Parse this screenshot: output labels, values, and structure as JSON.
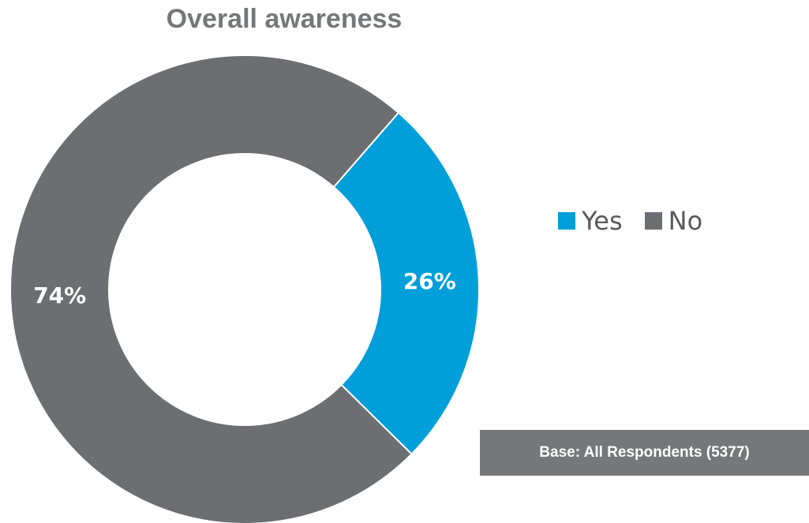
{
  "chart_data": {
    "type": "pie",
    "donut": true,
    "title": "Overall awareness",
    "categories": [
      "Yes",
      "No"
    ],
    "values": [
      26,
      74
    ],
    "value_labels": [
      "26%",
      "74%"
    ],
    "colors": [
      "#009fda",
      "#6d6e71"
    ],
    "legend_position": "right"
  },
  "footnote": "Base: All Respondents (5377)"
}
